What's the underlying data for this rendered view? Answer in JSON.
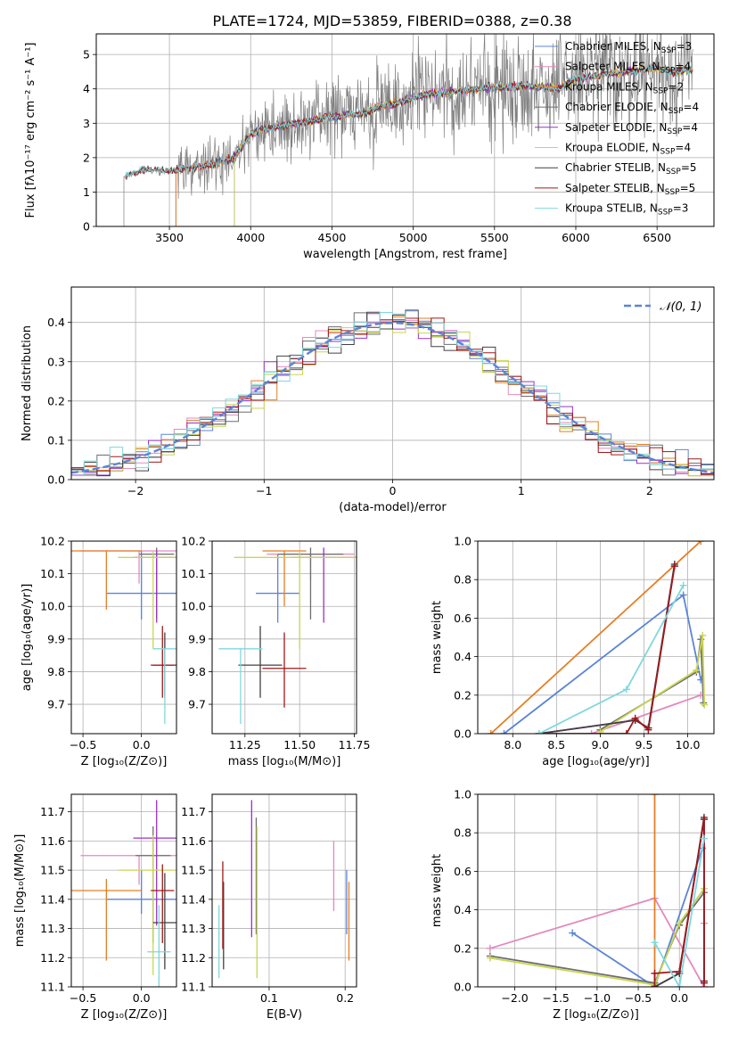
{
  "figure_title": "PLATE=1724, MJD=53859, FIBERID=0388, z=0.38",
  "colors": {
    "Chabrier MILES": "#5b84d6",
    "Salpeter MILES": "#e38abd",
    "Kroupa MILES": "#e67e22",
    "Chabrier ELODIE": "#6e6e6e",
    "Salpeter ELODIE": "#9b30c9",
    "Kroupa ELODIE": "#c8d651",
    "Chabrier STELIB": "#404040",
    "Salpeter STELIB": "#a01818",
    "Kroupa STELIB": "#7fd8dc",
    "data": "#808080",
    "normal": "#5b84d6",
    "grid": "#b0b0b0"
  },
  "chart_data": [
    {
      "id": "spectrum",
      "type": "line",
      "title": "PLATE=1724, MJD=53859, FIBERID=0388, z=0.38",
      "xlabel": "wavelength [Angstrom, rest frame]",
      "ylabel": "Flux [fλ10⁻¹⁷ erg cm⁻² s⁻¹ A⁻¹]",
      "xlim": [
        3050,
        6850
      ],
      "ylim": [
        0,
        5.6
      ],
      "xticks": [
        3500,
        4000,
        4500,
        5000,
        5500,
        6000,
        6500
      ],
      "yticks": [
        0,
        1,
        2,
        3,
        4,
        5
      ],
      "legend_position": "upper-right",
      "legend": [
        {
          "key": "Chabrier MILES",
          "label": "Chabrier MILES, N",
          "sub": "SSP",
          "tail": "=3"
        },
        {
          "key": "Salpeter MILES",
          "label": "Salpeter MILES, N",
          "sub": "SSP",
          "tail": "=4"
        },
        {
          "key": "Kroupa MILES",
          "label": "Kroupa MILES, N",
          "sub": "SSP",
          "tail": "=2"
        },
        {
          "key": "Chabrier ELODIE",
          "label": "Chabrier ELODIE, N",
          "sub": "SSP",
          "tail": "=4"
        },
        {
          "key": "Salpeter ELODIE",
          "label": "Salpeter ELODIE, N",
          "sub": "SSP",
          "tail": "=4"
        },
        {
          "key": "Kroupa ELODIE",
          "label": "Kroupa ELODIE, N",
          "sub": "SSP",
          "tail": "=4"
        },
        {
          "key": "Chabrier STELIB",
          "label": "Chabrier STELIB, N",
          "sub": "SSP",
          "tail": "=5"
        },
        {
          "key": "Salpeter STELIB",
          "label": "Salpeter STELIB, N",
          "sub": "SSP",
          "tail": "=5"
        },
        {
          "key": "Kroupa STELIB",
          "label": "Kroupa STELIB, N",
          "sub": "SSP",
          "tail": "=3"
        }
      ],
      "model_continuum": {
        "x": [
          3220,
          3300,
          3400,
          3500,
          3600,
          3700,
          3800,
          3900,
          4000,
          4100,
          4200,
          4300,
          4400,
          4500,
          4600,
          4700,
          4800,
          4900,
          5000,
          5100,
          5200,
          5300,
          5400,
          5500,
          5600,
          5700,
          5800,
          5900,
          6000,
          6100,
          6200,
          6300,
          6400,
          6500,
          6600,
          6700
        ],
        "y": [
          1.45,
          1.6,
          1.65,
          1.6,
          1.7,
          1.75,
          1.85,
          2.0,
          2.7,
          2.85,
          2.95,
          3.0,
          3.1,
          3.2,
          3.25,
          3.3,
          3.5,
          3.6,
          3.75,
          3.85,
          3.9,
          3.95,
          4.0,
          4.05,
          4.05,
          4.1,
          4.05,
          4.0,
          4.3,
          4.35,
          4.45,
          4.5,
          4.55,
          4.6,
          4.5,
          4.55
        ]
      },
      "data_start_x": 3220
    },
    {
      "id": "residuals",
      "type": "histogram",
      "xlabel": "(data-model)/error",
      "ylabel": "Normed distribution",
      "xlim": [
        -2.5,
        2.5
      ],
      "ylim": [
        0,
        0.49
      ],
      "xticks": [
        -2,
        -1,
        0,
        1,
        2
      ],
      "yticks": [
        0.0,
        0.1,
        0.2,
        0.3,
        0.4
      ],
      "legend_position": "upper-right",
      "legend": [
        {
          "label": "𝒩(0, 1)"
        }
      ],
      "bin_width": 0.1
    },
    {
      "id": "age_vs_Z",
      "type": "errorbar",
      "xlabel": "Z [log₁₀(Z/Z⊙)]",
      "ylabel": "age  [log₁₀(age/yr)]",
      "xlim": [
        -0.6,
        0.3
      ],
      "ylim": [
        9.61,
        10.2
      ],
      "xticks": [
        -0.5,
        0.0
      ],
      "yticks": [
        9.7,
        9.8,
        9.9,
        10.0,
        10.1,
        10.2
      ],
      "points": [
        {
          "key": "Chabrier MILES",
          "x": 0.0,
          "xerr": 0.3,
          "y": 10.04,
          "yerr": [
            0.08,
            0.13
          ]
        },
        {
          "key": "Salpeter MILES",
          "x": -0.02,
          "xerr": 0.5,
          "y": 10.17,
          "yerr": [
            0.1,
            0.0
          ]
        },
        {
          "key": "Kroupa MILES",
          "x": -0.3,
          "xerr": 0.3,
          "y": 10.17,
          "yerr": [
            0.18,
            0.0
          ]
        },
        {
          "key": "Chabrier ELODIE",
          "x": 0.13,
          "xerr": 0.15,
          "y": 10.16,
          "yerr": [
            0.2,
            0.02
          ]
        },
        {
          "key": "Salpeter ELODIE",
          "x": 0.13,
          "xerr": 0.2,
          "y": 10.15,
          "yerr": [
            0.2,
            0.02
          ]
        },
        {
          "key": "Kroupa ELODIE",
          "x": 0.1,
          "xerr": 0.3,
          "y": 10.15,
          "yerr": [
            0.28,
            0.02
          ]
        },
        {
          "key": "Chabrier STELIB",
          "x": 0.2,
          "xerr": 0.1,
          "y": 9.82,
          "yerr": [
            0.1,
            0.1
          ]
        },
        {
          "key": "Salpeter STELIB",
          "x": 0.18,
          "xerr": 0.1,
          "y": 9.82,
          "yerr": [
            0.1,
            0.12
          ]
        },
        {
          "key": "Kroupa STELIB",
          "x": 0.2,
          "xerr": 0.1,
          "y": 9.87,
          "yerr": [
            0.23,
            0.0
          ]
        }
      ]
    },
    {
      "id": "age_vs_mass",
      "type": "errorbar",
      "xlabel": "mass [log₁₀(M/M⊙)]",
      "ylabel": "",
      "xlim": [
        11.1,
        11.76
      ],
      "ylim": [
        9.61,
        10.2
      ],
      "xticks": [
        11.25,
        11.5,
        11.75
      ],
      "yticks": [
        9.7,
        9.8,
        9.9,
        10.0,
        10.1,
        10.2
      ],
      "points": [
        {
          "key": "Chabrier MILES",
          "x": 11.4,
          "xerr": 0.1,
          "y": 10.04,
          "yerr": [
            0.09,
            0.12
          ]
        },
        {
          "key": "Salpeter MILES",
          "x": 11.55,
          "xerr": 0.2,
          "y": 10.16,
          "yerr": [
            0.08,
            0.0
          ]
        },
        {
          "key": "Kroupa MILES",
          "x": 11.43,
          "xerr": 0.1,
          "y": 10.17,
          "yerr": [
            0.17,
            0.0
          ]
        },
        {
          "key": "Chabrier ELODIE",
          "x": 11.55,
          "xerr": 0.15,
          "y": 10.16,
          "yerr": [
            0.2,
            0.02
          ]
        },
        {
          "key": "Salpeter ELODIE",
          "x": 11.61,
          "xerr": 0.15,
          "y": 10.15,
          "yerr": [
            0.2,
            0.03
          ]
        },
        {
          "key": "Kroupa ELODIE",
          "x": 11.5,
          "xerr": 0.3,
          "y": 10.15,
          "yerr": [
            0.28,
            0.02
          ]
        },
        {
          "key": "Chabrier STELIB",
          "x": 11.32,
          "xerr": 0.1,
          "y": 9.82,
          "yerr": [
            0.1,
            0.12
          ]
        },
        {
          "key": "Salpeter STELIB",
          "x": 11.43,
          "xerr": 0.1,
          "y": 9.81,
          "yerr": [
            0.12,
            0.11
          ]
        },
        {
          "key": "Kroupa STELIB",
          "x": 11.23,
          "xerr": 0.1,
          "y": 9.87,
          "yerr": [
            0.23,
            0.0
          ]
        }
      ]
    },
    {
      "id": "weight_vs_age",
      "type": "line",
      "xlabel": "age  [log₁₀(age/yr)]",
      "ylabel": "mass weight",
      "xlim": [
        7.6,
        10.3
      ],
      "ylim": [
        0,
        1.0
      ],
      "xticks": [
        8.0,
        8.5,
        9.0,
        9.5,
        10.0
      ],
      "yticks": [
        0.0,
        0.2,
        0.4,
        0.6,
        0.8,
        1.0
      ],
      "series": [
        {
          "key": "Chabrier MILES",
          "x": [
            7.9,
            9.95,
            10.15
          ],
          "y": [
            0.0,
            0.72,
            0.28
          ]
        },
        {
          "key": "Salpeter MILES",
          "x": [
            8.9,
            10.15
          ],
          "y": [
            0.0,
            0.2
          ]
        },
        {
          "key": "Kroupa MILES",
          "x": [
            7.75,
            10.15
          ],
          "y": [
            0.0,
            1.0
          ]
        },
        {
          "key": "Chabrier ELODIE",
          "x": [
            9.0,
            10.1,
            10.15,
            10.18
          ],
          "y": [
            0.02,
            0.32,
            0.49,
            0.16
          ]
        },
        {
          "key": "Salpeter ELODIE",
          "x": [
            8.3,
            9.4,
            9.55,
            9.85
          ],
          "y": [
            0.0,
            0.07,
            0.03,
            0.87
          ]
        },
        {
          "key": "Kroupa ELODIE",
          "x": [
            9.0,
            10.1,
            10.17,
            10.19
          ],
          "y": [
            0.01,
            0.33,
            0.51,
            0.15
          ]
        },
        {
          "key": "Chabrier STELIB",
          "x": [
            8.3,
            9.4,
            9.55,
            9.85
          ],
          "y": [
            0.0,
            0.07,
            0.03,
            0.88
          ]
        },
        {
          "key": "Salpeter STELIB",
          "x": [
            8.3,
            9.3,
            9.4,
            9.55,
            9.85
          ],
          "y": [
            0.0,
            0.0,
            0.08,
            0.02,
            0.87
          ]
        },
        {
          "key": "Kroupa STELIB",
          "x": [
            8.3,
            9.3,
            9.95
          ],
          "y": [
            0.0,
            0.23,
            0.77
          ]
        }
      ]
    },
    {
      "id": "mass_vs_Z",
      "type": "errorbar",
      "xlabel": "Z [log₁₀(Z/Z⊙)]",
      "ylabel": "mass [log₁₀(M/M⊙)]",
      "xlim": [
        -0.6,
        0.3
      ],
      "ylim": [
        11.1,
        11.76
      ],
      "xticks": [
        -0.5,
        0.0
      ],
      "yticks": [
        11.1,
        11.2,
        11.3,
        11.4,
        11.5,
        11.6,
        11.7
      ],
      "points": [
        {
          "key": "Chabrier MILES",
          "x": 0.0,
          "xerr": 0.3,
          "y": 11.4,
          "yerr": [
            0.05,
            0.1
          ]
        },
        {
          "key": "Salpeter MILES",
          "x": -0.02,
          "xerr": 0.5,
          "y": 11.55,
          "yerr": [
            0.1,
            0.0
          ]
        },
        {
          "key": "Kroupa MILES",
          "x": -0.3,
          "xerr": 0.3,
          "y": 11.43,
          "yerr": [
            0.24,
            0.04
          ]
        },
        {
          "key": "Chabrier ELODIE",
          "x": 0.1,
          "xerr": 0.15,
          "y": 11.55,
          "yerr": [
            0.3,
            0.1
          ]
        },
        {
          "key": "Salpeter ELODIE",
          "x": 0.13,
          "xerr": 0.2,
          "y": 11.61,
          "yerr": [
            0.3,
            0.13
          ]
        },
        {
          "key": "Kroupa ELODIE",
          "x": 0.1,
          "xerr": 0.3,
          "y": 11.5,
          "yerr": [
            0.36,
            0.12
          ]
        },
        {
          "key": "Chabrier STELIB",
          "x": 0.2,
          "xerr": 0.1,
          "y": 11.32,
          "yerr": [
            0.16,
            0.17
          ]
        },
        {
          "key": "Salpeter STELIB",
          "x": 0.18,
          "xerr": 0.1,
          "y": 11.43,
          "yerr": [
            0.18,
            0.09
          ]
        },
        {
          "key": "Kroupa STELIB",
          "x": 0.15,
          "xerr": 0.1,
          "y": 11.22,
          "yerr": [
            0.12,
            0.16
          ]
        }
      ]
    },
    {
      "id": "mass_vs_ebv",
      "type": "errorbar",
      "xlabel": "E(B-V)",
      "ylabel": "",
      "xlim": [
        0.025,
        0.215
      ],
      "ylim": [
        11.1,
        11.76
      ],
      "xticks": [
        0.1,
        0.2
      ],
      "yticks": [
        11.1,
        11.2,
        11.3,
        11.4,
        11.5,
        11.6,
        11.7
      ],
      "points": [
        {
          "key": "Chabrier MILES",
          "x": 0.202,
          "y": 11.4,
          "yerr": [
            0.12,
            0.1
          ]
        },
        {
          "key": "Salpeter MILES",
          "x": 0.185,
          "y": 11.5,
          "yerr": [
            0.14,
            0.1
          ]
        },
        {
          "key": "Kroupa MILES",
          "x": 0.205,
          "y": 11.42,
          "yerr": [
            0.23,
            0.04
          ]
        },
        {
          "key": "Chabrier ELODIE",
          "x": 0.083,
          "y": 11.58,
          "yerr": [
            0.3,
            0.1
          ]
        },
        {
          "key": "Salpeter ELODIE",
          "x": 0.077,
          "y": 11.5,
          "yerr": [
            0.23,
            0.24
          ]
        },
        {
          "key": "Kroupa ELODIE",
          "x": 0.084,
          "y": 11.47,
          "yerr": [
            0.34,
            0.18
          ]
        },
        {
          "key": "Chabrier STELIB",
          "x": 0.04,
          "y": 11.3,
          "yerr": [
            0.14,
            0.16
          ]
        },
        {
          "key": "Salpeter STELIB",
          "x": 0.039,
          "y": 11.4,
          "yerr": [
            0.17,
            0.13
          ]
        },
        {
          "key": "Kroupa STELIB",
          "x": 0.034,
          "y": 11.26,
          "yerr": [
            0.13,
            0.12
          ]
        }
      ]
    },
    {
      "id": "weight_vs_Z",
      "type": "line",
      "xlabel": "Z [log₁₀(Z/Z⊙)]",
      "ylabel": "mass weight",
      "xlim": [
        -2.45,
        0.42
      ],
      "ylim": [
        0,
        1.0
      ],
      "xticks": [
        -2.0,
        -1.5,
        -1.0,
        -0.5,
        0.0
      ],
      "yticks": [
        0.0,
        0.2,
        0.4,
        0.6,
        0.8,
        1.0
      ],
      "series": [
        {
          "key": "Chabrier MILES",
          "x": [
            -1.3,
            -0.3,
            0.28
          ],
          "y": [
            0.28,
            0.0,
            0.72
          ]
        },
        {
          "key": "Salpeter MILES",
          "x": [
            -2.3,
            -0.3,
            0.3,
            0.3
          ],
          "y": [
            0.2,
            0.46,
            0.0,
            0.33
          ]
        },
        {
          "key": "Kroupa MILES",
          "x": [
            -0.3,
            -0.3
          ],
          "y": [
            0.0,
            1.0
          ]
        },
        {
          "key": "Chabrier ELODIE",
          "x": [
            -2.3,
            -0.3,
            0.0,
            0.3
          ],
          "y": [
            0.16,
            0.02,
            0.32,
            0.49
          ]
        },
        {
          "key": "Salpeter ELODIE",
          "x": [
            -0.3,
            0.0,
            0.3,
            0.3
          ],
          "y": [
            0.0,
            0.07,
            0.87,
            0.03
          ]
        },
        {
          "key": "Kroupa ELODIE",
          "x": [
            -2.3,
            -0.3,
            0.0,
            0.3
          ],
          "y": [
            0.15,
            0.01,
            0.33,
            0.51
          ]
        },
        {
          "key": "Chabrier STELIB",
          "x": [
            -0.3,
            0.0,
            0.3,
            0.3
          ],
          "y": [
            0.0,
            0.07,
            0.88,
            0.03
          ]
        },
        {
          "key": "Salpeter STELIB",
          "x": [
            -0.3,
            -0.3,
            0.0,
            0.3,
            0.3
          ],
          "y": [
            0.0,
            0.07,
            0.08,
            0.87,
            0.02
          ]
        },
        {
          "key": "Kroupa STELIB",
          "x": [
            -0.3,
            0.0,
            0.3
          ],
          "y": [
            0.23,
            0.0,
            0.77
          ]
        }
      ]
    }
  ]
}
